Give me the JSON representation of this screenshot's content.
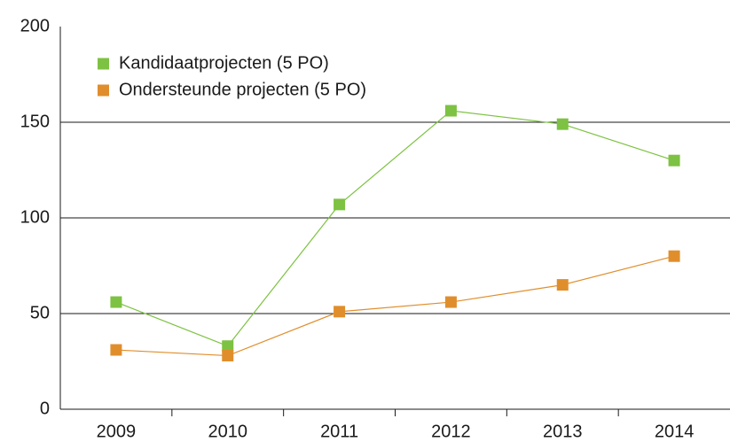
{
  "chart_data": {
    "type": "line",
    "categories": [
      "2009",
      "2010",
      "2011",
      "2012",
      "2013",
      "2014"
    ],
    "series": [
      {
        "name": "Kandidaatprojecten (5 PO)",
        "color": "#7dc242",
        "values": [
          56,
          33,
          107,
          156,
          149,
          130
        ]
      },
      {
        "name": "Ondersteunde projecten (5 PO)",
        "color": "#e08e2c",
        "values": [
          31,
          28,
          51,
          56,
          65,
          80
        ]
      }
    ],
    "ylim": [
      0,
      200
    ],
    "yticks": [
      0,
      50,
      100,
      150,
      200
    ],
    "grid": true,
    "legend": "upper left"
  }
}
